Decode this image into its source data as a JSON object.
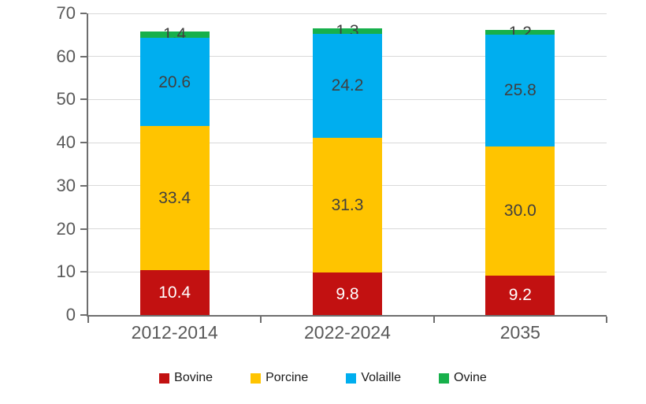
{
  "chart_data": {
    "type": "bar",
    "stacked": true,
    "title": "",
    "xlabel": "",
    "ylabel": "",
    "categories": [
      "2012-2014",
      "2022-2024",
      "2035"
    ],
    "series": [
      {
        "name": "Bovine",
        "color": "#c21111",
        "label_color": "#ffffff",
        "values": [
          10.4,
          9.8,
          9.2
        ],
        "labels": [
          "10.4",
          "9.8",
          "9.2"
        ]
      },
      {
        "name": "Porcine",
        "color": "#ffc400",
        "label_color": "#404040",
        "values": [
          33.4,
          31.3,
          30.0
        ],
        "labels": [
          "33.4",
          "31.3",
          "30.0"
        ]
      },
      {
        "name": "Volaille",
        "color": "#00aeef",
        "label_color": "#404040",
        "values": [
          20.6,
          24.2,
          25.8
        ],
        "labels": [
          "20.6",
          "24.2",
          "25.8"
        ]
      },
      {
        "name": "Ovine",
        "color": "#17b04b",
        "label_color": "#404040",
        "values": [
          1.4,
          1.3,
          1.2
        ],
        "labels": [
          "1.4",
          "1.3",
          "1.2"
        ]
      }
    ],
    "ylim": [
      0,
      70
    ],
    "yticks": [
      0,
      10,
      20,
      30,
      40,
      50,
      60,
      70
    ],
    "grid": true,
    "legend_position": "bottom",
    "colors": {
      "axis": "#6e6e6e",
      "gridline": "#d9d9d9",
      "tick_label": "#595959",
      "legend_text": "#1a1a1a"
    }
  }
}
